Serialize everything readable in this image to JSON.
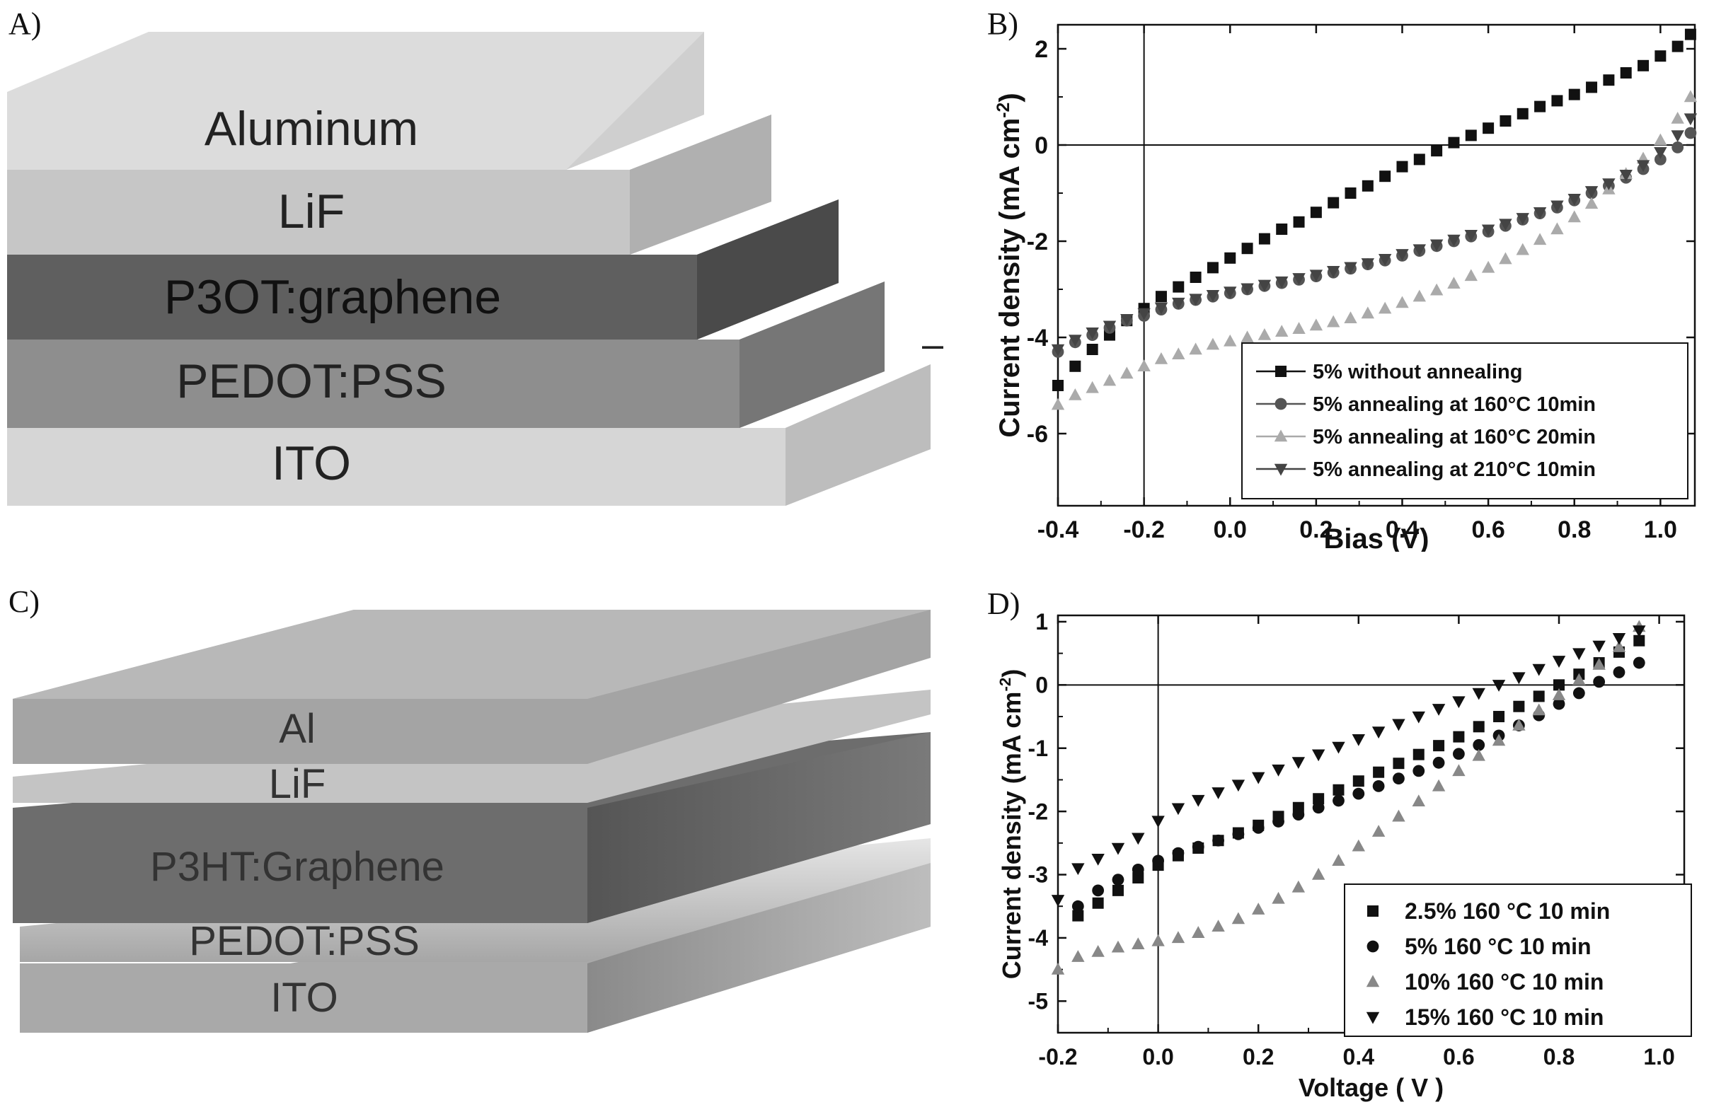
{
  "panel_labels": {
    "a": "A)",
    "b": "B)",
    "c": "C)",
    "d": "D)"
  },
  "diagram_a": {
    "layers": [
      "Aluminum",
      "LiF",
      "P3OT:graphene",
      "PEDOT:PSS",
      "ITO"
    ],
    "marker": "–"
  },
  "diagram_c": {
    "layers": [
      "Al",
      "LiF",
      "P3HT:Graphene",
      "PEDOT:PSS",
      "ITO"
    ]
  },
  "colors": {
    "series_dark": "#111111",
    "series_mid": "#555555",
    "series_light": "#aaaaaa",
    "series_dark2": "#444444"
  },
  "chart_data": [
    {
      "id": "B",
      "type": "scatter",
      "xlabel": "Bias (V)",
      "ylabel": "Current density (mA cm",
      "ylabel_sup": "-2",
      "ylabel_close": ")",
      "xlim": [
        -0.4,
        1.08
      ],
      "ylim": [
        -7.5,
        2.5
      ],
      "xticks": [
        -0.4,
        -0.2,
        0.0,
        0.2,
        0.4,
        0.6,
        0.8,
        1.0
      ],
      "xtick_labels": [
        "-0.4",
        "-0.2",
        "0.0",
        "0.2",
        "0.4",
        "0.6",
        "0.8",
        "1.0"
      ],
      "yticks": [
        2,
        0,
        -2,
        -4,
        -6
      ],
      "ytick_labels": [
        "2",
        "0",
        "-2",
        "-4",
        "-6"
      ],
      "vline": -0.2,
      "hline": 0,
      "legend_position": "lower-right",
      "series": [
        {
          "name": "5% without annealing",
          "marker": "square",
          "color": "#111111",
          "x": [
            -0.4,
            -0.36,
            -0.32,
            -0.28,
            -0.24,
            -0.2,
            -0.16,
            -0.12,
            -0.08,
            -0.04,
            0.0,
            0.04,
            0.08,
            0.12,
            0.16,
            0.2,
            0.24,
            0.28,
            0.32,
            0.36,
            0.4,
            0.44,
            0.48,
            0.52,
            0.56,
            0.6,
            0.64,
            0.68,
            0.72,
            0.76,
            0.8,
            0.84,
            0.88,
            0.92,
            0.96,
            1.0,
            1.04,
            1.07
          ],
          "y": [
            -5.0,
            -4.6,
            -4.25,
            -3.95,
            -3.65,
            -3.4,
            -3.15,
            -2.95,
            -2.75,
            -2.55,
            -2.35,
            -2.15,
            -1.95,
            -1.75,
            -1.6,
            -1.4,
            -1.2,
            -1.0,
            -0.85,
            -0.65,
            -0.45,
            -0.3,
            -0.12,
            0.05,
            0.2,
            0.35,
            0.5,
            0.65,
            0.8,
            0.92,
            1.05,
            1.2,
            1.35,
            1.5,
            1.65,
            1.85,
            2.05,
            2.3
          ]
        },
        {
          "name": "5% annealing at 160°C 10min",
          "marker": "circle",
          "color": "#555555",
          "x": [
            -0.4,
            -0.36,
            -0.32,
            -0.28,
            -0.24,
            -0.2,
            -0.16,
            -0.12,
            -0.08,
            -0.04,
            0.0,
            0.04,
            0.08,
            0.12,
            0.16,
            0.2,
            0.24,
            0.28,
            0.32,
            0.36,
            0.4,
            0.44,
            0.48,
            0.52,
            0.56,
            0.6,
            0.64,
            0.68,
            0.72,
            0.76,
            0.8,
            0.84,
            0.88,
            0.92,
            0.96,
            1.0,
            1.04,
            1.07
          ],
          "y": [
            -4.3,
            -4.1,
            -3.95,
            -3.8,
            -3.65,
            -3.55,
            -3.42,
            -3.3,
            -3.22,
            -3.15,
            -3.08,
            -3.0,
            -2.93,
            -2.87,
            -2.8,
            -2.73,
            -2.65,
            -2.57,
            -2.48,
            -2.4,
            -2.3,
            -2.2,
            -2.1,
            -2.0,
            -1.9,
            -1.8,
            -1.68,
            -1.55,
            -1.42,
            -1.3,
            -1.15,
            -1.0,
            -0.85,
            -0.68,
            -0.5,
            -0.3,
            -0.05,
            0.25
          ]
        },
        {
          "name": "5% annealing at  160°C  20min",
          "marker": "triangle-up",
          "color": "#aaaaaa",
          "x": [
            -0.4,
            -0.36,
            -0.32,
            -0.28,
            -0.24,
            -0.2,
            -0.16,
            -0.12,
            -0.08,
            -0.04,
            0.0,
            0.04,
            0.08,
            0.12,
            0.16,
            0.2,
            0.24,
            0.28,
            0.32,
            0.36,
            0.4,
            0.44,
            0.48,
            0.52,
            0.56,
            0.6,
            0.64,
            0.68,
            0.72,
            0.76,
            0.8,
            0.84,
            0.88,
            0.92,
            0.96,
            1.0,
            1.04,
            1.07
          ],
          "y": [
            -5.4,
            -5.2,
            -5.05,
            -4.9,
            -4.75,
            -4.6,
            -4.45,
            -4.35,
            -4.25,
            -4.15,
            -4.08,
            -4.0,
            -3.95,
            -3.88,
            -3.82,
            -3.75,
            -3.68,
            -3.6,
            -3.5,
            -3.4,
            -3.28,
            -3.15,
            -3.02,
            -2.88,
            -2.72,
            -2.55,
            -2.37,
            -2.18,
            -1.97,
            -1.75,
            -1.5,
            -1.22,
            -0.92,
            -0.6,
            -0.28,
            0.1,
            0.55,
            1.0
          ]
        },
        {
          "name": "5% annealing at  210°C 10min",
          "marker": "triangle-down",
          "color": "#444444",
          "x": [
            -0.4,
            -0.36,
            -0.32,
            -0.28,
            -0.24,
            -0.2,
            -0.16,
            -0.12,
            -0.08,
            -0.04,
            0.0,
            0.04,
            0.08,
            0.12,
            0.16,
            0.2,
            0.24,
            0.28,
            0.32,
            0.36,
            0.4,
            0.44,
            0.48,
            0.52,
            0.56,
            0.6,
            0.64,
            0.68,
            0.72,
            0.76,
            0.8,
            0.84,
            0.88,
            0.92,
            0.96,
            1.0,
            1.04,
            1.07
          ],
          "y": [
            -4.25,
            -4.05,
            -3.9,
            -3.76,
            -3.62,
            -3.5,
            -3.38,
            -3.28,
            -3.2,
            -3.12,
            -3.05,
            -2.98,
            -2.91,
            -2.84,
            -2.77,
            -2.7,
            -2.62,
            -2.54,
            -2.46,
            -2.37,
            -2.27,
            -2.17,
            -2.07,
            -1.97,
            -1.87,
            -1.76,
            -1.64,
            -1.52,
            -1.4,
            -1.26,
            -1.12,
            -0.96,
            -0.8,
            -0.62,
            -0.42,
            -0.15,
            0.2,
            0.55
          ]
        }
      ]
    },
    {
      "id": "D",
      "type": "scatter",
      "xlabel": "Voltage ( V )",
      "ylabel": "Current density (mA cm",
      "ylabel_sup": "-2",
      "ylabel_close": ")",
      "xlim": [
        -0.2,
        1.05
      ],
      "ylim": [
        -5.5,
        1.1
      ],
      "xticks": [
        -0.2,
        0.0,
        0.2,
        0.4,
        0.6,
        0.8,
        1.0
      ],
      "xtick_labels": [
        "-0.2",
        "0.0",
        "0.2",
        "0.4",
        "0.6",
        "0.8",
        "1.0"
      ],
      "yticks": [
        1,
        0,
        -1,
        -2,
        -3,
        -4,
        -5
      ],
      "ytick_labels": [
        "1",
        "0",
        "-1",
        "-2",
        "-3",
        "-4",
        "-5"
      ],
      "vline": 0.0,
      "hline": 0,
      "legend_position": "lower-right",
      "series": [
        {
          "name": "2.5% 160 °C 10 min",
          "marker": "square",
          "color": "#111111",
          "x": [
            -0.16,
            -0.12,
            -0.08,
            -0.04,
            0.0,
            0.04,
            0.08,
            0.12,
            0.16,
            0.2,
            0.24,
            0.28,
            0.32,
            0.36,
            0.4,
            0.44,
            0.48,
            0.52,
            0.56,
            0.6,
            0.64,
            0.68,
            0.72,
            0.76,
            0.8,
            0.84,
            0.88,
            0.92,
            0.96
          ],
          "y": [
            -3.65,
            -3.45,
            -3.25,
            -3.05,
            -2.85,
            -2.7,
            -2.58,
            -2.46,
            -2.34,
            -2.22,
            -2.08,
            -1.94,
            -1.8,
            -1.66,
            -1.52,
            -1.38,
            -1.24,
            -1.1,
            -0.96,
            -0.82,
            -0.66,
            -0.5,
            -0.34,
            -0.18,
            0.0,
            0.17,
            0.35,
            0.52,
            0.7
          ]
        },
        {
          "name": "5% 160 °C 10 min",
          "marker": "circle",
          "color": "#111111",
          "x": [
            -0.16,
            -0.12,
            -0.08,
            -0.04,
            0.0,
            0.04,
            0.08,
            0.12,
            0.16,
            0.2,
            0.24,
            0.28,
            0.32,
            0.36,
            0.4,
            0.44,
            0.48,
            0.52,
            0.56,
            0.6,
            0.64,
            0.68,
            0.72,
            0.76,
            0.8,
            0.84,
            0.88,
            0.92,
            0.96
          ],
          "y": [
            -3.5,
            -3.25,
            -3.08,
            -2.92,
            -2.78,
            -2.66,
            -2.56,
            -2.46,
            -2.36,
            -2.26,
            -2.16,
            -2.05,
            -1.94,
            -1.83,
            -1.72,
            -1.6,
            -1.48,
            -1.36,
            -1.23,
            -1.09,
            -0.95,
            -0.8,
            -0.64,
            -0.48,
            -0.3,
            -0.13,
            0.05,
            0.2,
            0.35
          ]
        },
        {
          "name": "10% 160 °C 10 min",
          "marker": "triangle-up",
          "color": "#888888",
          "x": [
            -0.2,
            -0.16,
            -0.12,
            -0.08,
            -0.04,
            0.0,
            0.04,
            0.08,
            0.12,
            0.16,
            0.2,
            0.24,
            0.28,
            0.32,
            0.36,
            0.4,
            0.44,
            0.48,
            0.52,
            0.56,
            0.6,
            0.64,
            0.68,
            0.72,
            0.76,
            0.8,
            0.84,
            0.88,
            0.92,
            0.96
          ],
          "y": [
            -4.5,
            -4.3,
            -4.22,
            -4.15,
            -4.1,
            -4.05,
            -4.0,
            -3.92,
            -3.82,
            -3.7,
            -3.55,
            -3.38,
            -3.2,
            -3.0,
            -2.78,
            -2.55,
            -2.32,
            -2.08,
            -1.84,
            -1.6,
            -1.36,
            -1.12,
            -0.88,
            -0.64,
            -0.4,
            -0.16,
            0.08,
            0.32,
            0.6,
            0.92
          ]
        },
        {
          "name": "15% 160 °C 10 min",
          "marker": "triangle-down",
          "color": "#111111",
          "x": [
            -0.2,
            -0.16,
            -0.12,
            -0.08,
            -0.04,
            0.0,
            0.04,
            0.08,
            0.12,
            0.16,
            0.2,
            0.24,
            0.28,
            0.32,
            0.36,
            0.4,
            0.44,
            0.48,
            0.52,
            0.56,
            0.6,
            0.64,
            0.68,
            0.72,
            0.76,
            0.8,
            0.84,
            0.88,
            0.92,
            0.96
          ],
          "y": [
            -3.4,
            -2.9,
            -2.75,
            -2.58,
            -2.42,
            -2.15,
            -1.95,
            -1.82,
            -1.7,
            -1.58,
            -1.46,
            -1.34,
            -1.22,
            -1.1,
            -0.98,
            -0.86,
            -0.74,
            -0.62,
            -0.5,
            -0.38,
            -0.26,
            -0.13,
            0.0,
            0.12,
            0.25,
            0.38,
            0.5,
            0.62,
            0.74,
            0.86
          ]
        }
      ]
    }
  ]
}
